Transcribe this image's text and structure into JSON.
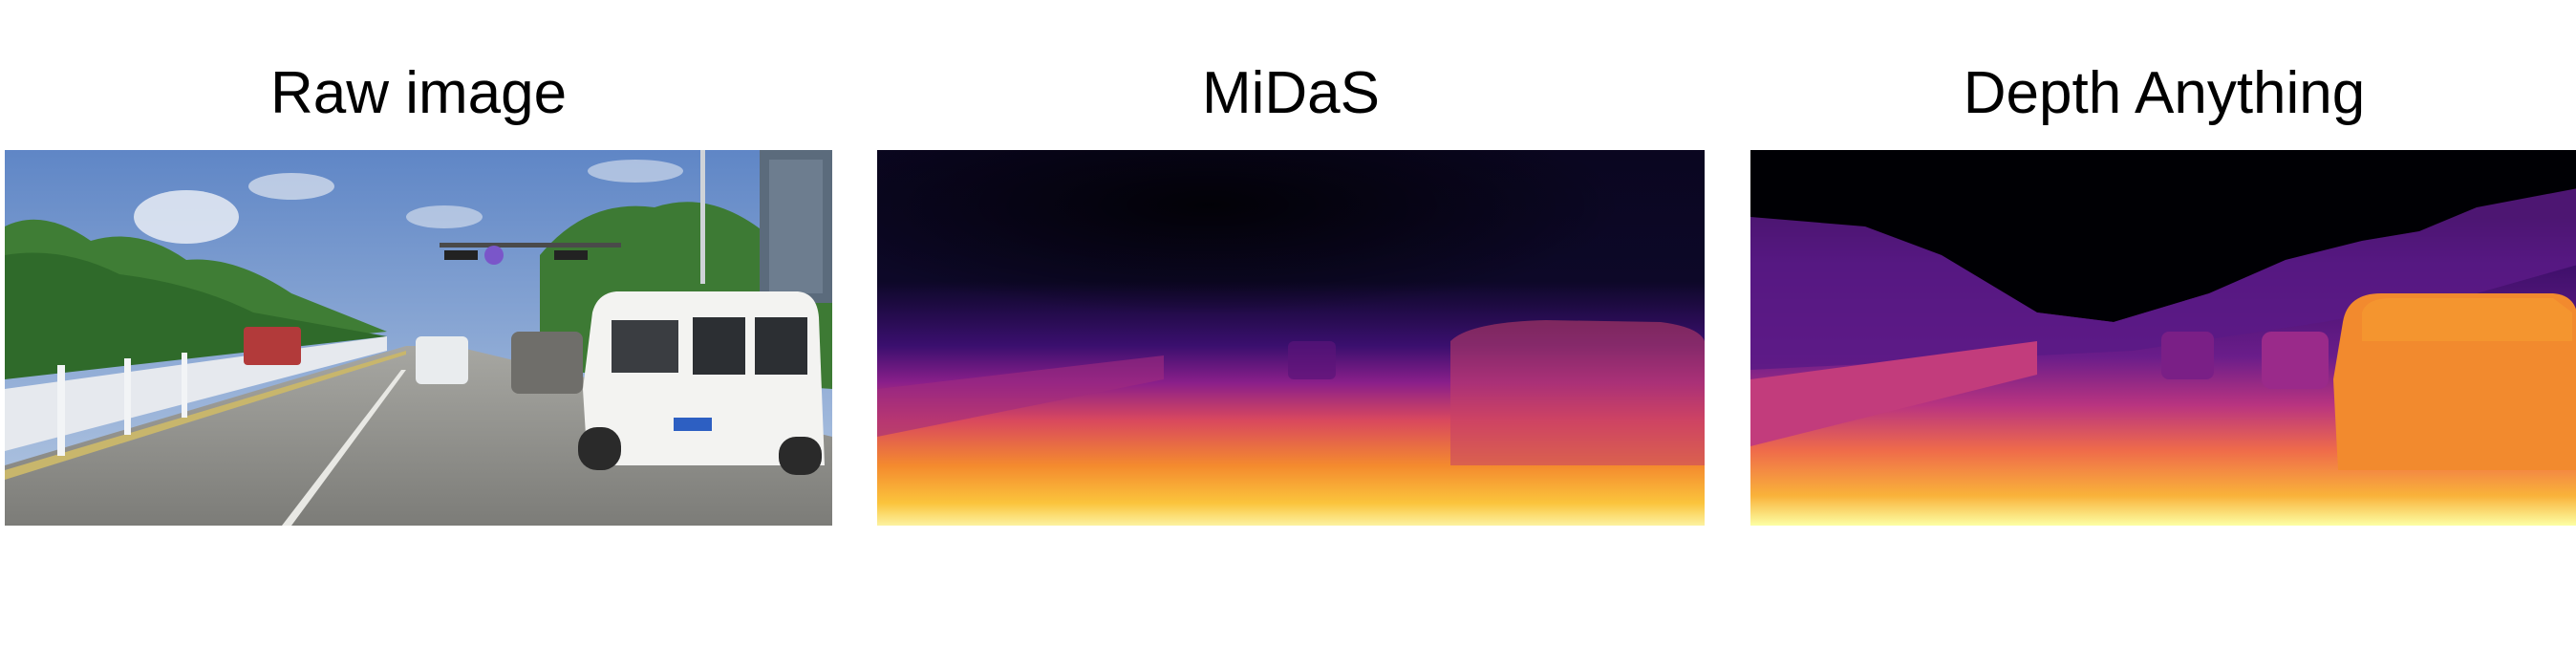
{
  "panels": [
    {
      "title": "Raw image",
      "image": "raw-driving-photo"
    },
    {
      "title": "MiDaS",
      "image": "midas-depth-map"
    },
    {
      "title": "Depth Anything",
      "image": "depth-anything-depth-map"
    }
  ],
  "colors": {
    "sky": "#6f8fc4",
    "road": "#8a8a86",
    "foliage": "#3f7d35",
    "depth_far": "#000004",
    "depth_mid": "#6a1d8a",
    "depth_near": "#f7b13a",
    "depth_closest": "#fcffa4"
  }
}
